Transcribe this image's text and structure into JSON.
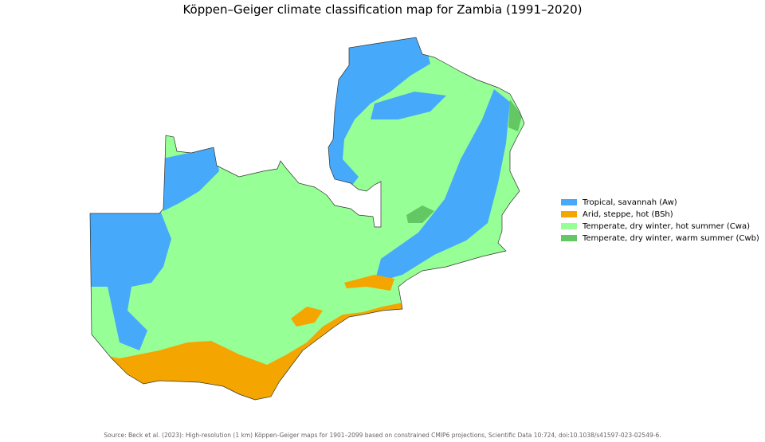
{
  "title": "Köppen–Geiger climate classification map for Zambia (1991–2020)",
  "legend": [
    {
      "label": "Tropical, savannah (Aw)",
      "color": "#46a9fa"
    },
    {
      "label": "Arid, steppe, hot (BSh)",
      "color": "#f5a500"
    },
    {
      "label": "Temperate, dry winter, hot summer (Cwa)",
      "color": "#96ff96"
    },
    {
      "label": "Temperate, dry winter, warm summer (Cwb)",
      "color": "#63c764"
    }
  ],
  "source": "Source: Beck et al. (2023): High-resolution (1 km) Köppen-Geiger maps for 1901–2099 based on constrained CMIP6 projections, Scientific Data 10:724, doi:10.1038/s41597-023-02549-6."
}
